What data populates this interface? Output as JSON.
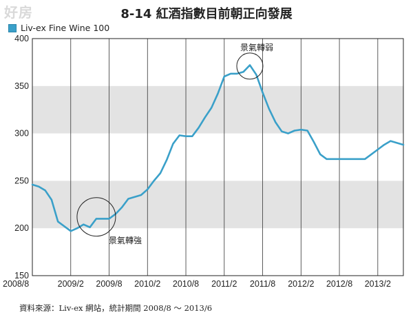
{
  "watermark": "好房",
  "title": "8-14 紅酒指數目前朝正向發展",
  "source_note": "資料來源：Liv-ex 網站，統計期間 2008/8 ～ 2013/6",
  "colors": {
    "line": "#3aa0c9",
    "band": "#e3e3e3",
    "grid": "#333333"
  },
  "chart_data": {
    "type": "line",
    "title": "8-14 紅酒指數目前朝正向發展",
    "xlabel": "",
    "ylabel": "",
    "ylim": [
      150,
      400
    ],
    "yticks": [
      150,
      200,
      250,
      300,
      350,
      400
    ],
    "xticks": [
      "2008/8",
      "2009/2",
      "2009/8",
      "2010/2",
      "2010/8",
      "2011/2",
      "2011/8",
      "2012/2",
      "2012/8",
      "2013/2"
    ],
    "grid": "vertical lines at each x tick; shaded bands 200-250 and 300-350",
    "legend": "top-left",
    "series": [
      {
        "name": "Liv-ex Fine Wine 100",
        "x": [
          "2008/8",
          "2008/9",
          "2008/10",
          "2008/11",
          "2008/12",
          "2009/1",
          "2009/2",
          "2009/3",
          "2009/4",
          "2009/5",
          "2009/6",
          "2009/7",
          "2009/8",
          "2009/9",
          "2009/10",
          "2009/11",
          "2009/12",
          "2010/1",
          "2010/2",
          "2010/3",
          "2010/4",
          "2010/5",
          "2010/6",
          "2010/7",
          "2010/8",
          "2010/9",
          "2010/10",
          "2010/11",
          "2010/12",
          "2011/1",
          "2011/2",
          "2011/3",
          "2011/4",
          "2011/5",
          "2011/6",
          "2011/7",
          "2011/8",
          "2011/9",
          "2011/10",
          "2011/11",
          "2011/12",
          "2012/1",
          "2012/2",
          "2012/3",
          "2012/4",
          "2012/5",
          "2012/6",
          "2012/7",
          "2012/8",
          "2012/9",
          "2012/10",
          "2012/11",
          "2012/12",
          "2013/1",
          "2013/2",
          "2013/3",
          "2013/4",
          "2013/5",
          "2013/6"
        ],
        "values": [
          246,
          244,
          240,
          230,
          207,
          202,
          197,
          200,
          204,
          201,
          210,
          210,
          210,
          215,
          222,
          231,
          233,
          235,
          241,
          250,
          258,
          272,
          289,
          298,
          297,
          297,
          306,
          317,
          327,
          342,
          360,
          363,
          363,
          365,
          372,
          362,
          343,
          326,
          312,
          302,
          300,
          303,
          304,
          303,
          291,
          278,
          273,
          273,
          273,
          273,
          273,
          273,
          273,
          278,
          283,
          288,
          292,
          290,
          288
        ]
      }
    ],
    "annotations": [
      {
        "text": "景氣轉強",
        "x": "2009/6",
        "y": 212
      },
      {
        "text": "景氣轉弱",
        "x": "2011/6",
        "y": 371
      }
    ]
  }
}
